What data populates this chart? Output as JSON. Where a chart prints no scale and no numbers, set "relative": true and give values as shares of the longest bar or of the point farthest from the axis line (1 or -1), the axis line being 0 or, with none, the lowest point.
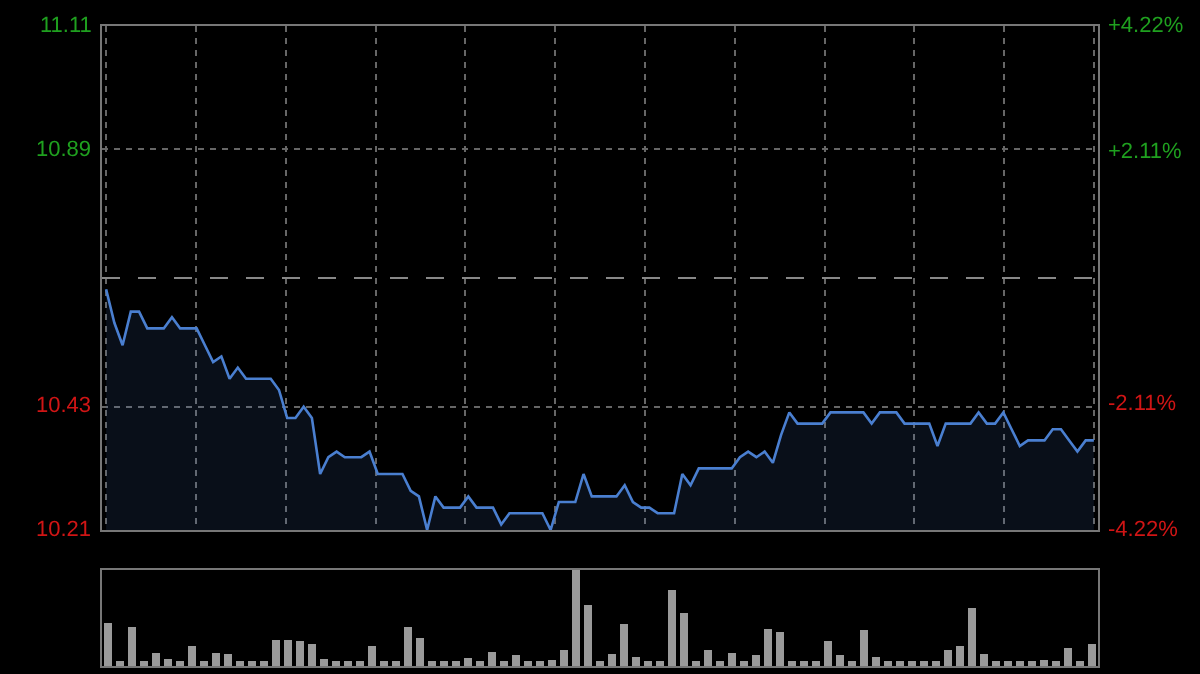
{
  "chart_data": [
    {
      "type": "area",
      "categories": [
        null,
        null,
        null,
        null,
        null,
        null,
        null,
        null,
        null,
        null,
        null,
        null,
        null,
        null,
        null,
        null,
        null,
        null,
        null,
        null,
        null,
        null,
        null,
        null,
        null,
        null,
        null,
        null,
        null,
        null,
        null,
        null,
        null,
        null,
        null,
        null,
        null,
        null,
        null,
        null,
        null,
        null,
        null,
        null,
        null,
        null,
        null,
        null,
        null,
        null,
        null,
        null,
        null,
        null,
        null,
        null,
        null,
        null,
        null,
        null,
        null,
        null,
        null,
        null,
        null,
        null,
        null,
        null,
        null,
        null,
        null,
        null,
        null,
        null,
        null,
        null,
        null,
        null,
        null,
        null,
        null,
        null,
        null,
        null,
        null,
        null,
        null,
        null,
        null,
        null,
        null,
        null,
        null,
        null,
        null,
        null,
        null,
        null,
        null,
        null,
        null,
        null,
        null,
        null,
        null,
        null,
        null,
        null,
        null,
        null,
        null,
        null,
        null,
        null,
        null,
        null,
        null,
        null,
        null,
        null,
        null
      ],
      "series": [
        {
          "color": "#4a7fd0",
          "values": [
            10.64,
            10.58,
            10.54,
            10.6,
            10.6,
            10.57,
            10.57,
            10.57,
            10.59,
            10.57,
            10.57,
            10.57,
            10.54,
            10.51,
            10.52,
            10.48,
            10.5,
            10.48,
            10.48,
            10.48,
            10.48,
            10.46,
            10.41,
            10.41,
            10.43,
            10.41,
            10.31,
            10.34,
            10.35,
            10.34,
            10.34,
            10.34,
            10.35,
            10.31,
            10.31,
            10.31,
            10.31,
            10.28,
            10.27,
            10.21,
            10.27,
            10.25,
            10.25,
            10.25,
            10.27,
            10.25,
            10.25,
            10.25,
            10.22,
            10.24,
            10.24,
            10.24,
            10.24,
            10.24,
            10.21,
            10.26,
            10.26,
            10.26,
            10.31,
            10.27,
            10.27,
            10.27,
            10.27,
            10.29,
            10.26,
            10.25,
            10.25,
            10.24,
            10.24,
            10.24,
            10.31,
            10.29,
            10.32,
            10.32,
            10.32,
            10.32,
            10.32,
            10.34,
            10.35,
            10.34,
            10.35,
            10.33,
            10.38,
            10.42,
            10.4,
            10.4,
            10.4,
            10.4,
            10.42,
            10.42,
            10.42,
            10.42,
            10.42,
            10.4,
            10.42,
            10.42,
            10.42,
            10.4,
            10.4,
            10.4,
            10.4,
            10.36,
            10.4,
            10.4,
            10.4,
            10.4,
            10.42,
            10.4,
            10.4,
            10.42,
            10.39,
            10.36,
            10.37,
            10.37,
            10.37,
            10.39,
            10.39,
            10.37,
            10.35,
            10.37,
            10.37
          ]
        }
      ],
      "ylim": [
        10.21,
        11.11
      ],
      "yticks": [
        11.11,
        10.89,
        10.43,
        10.21
      ],
      "y2lim": [
        -4.22,
        4.22
      ],
      "y2ticks": [
        {
          "value": 4.22,
          "label": "+4.22%"
        },
        {
          "value": 2.11,
          "label": "+2.11%"
        },
        {
          "value": -2.11,
          "label": "-2.11%"
        },
        {
          "value": -4.22,
          "label": "-4.22%"
        }
      ],
      "ref_lines": [
        {
          "axis": "y",
          "value": 10.66,
          "color": "#888888",
          "line_style": "dashed"
        }
      ],
      "grid": true
    },
    {
      "type": "bar",
      "relative": true,
      "categories": [
        null,
        null,
        null,
        null,
        null,
        null,
        null,
        null,
        null,
        null,
        null,
        null,
        null,
        null,
        null,
        null,
        null,
        null,
        null,
        null,
        null,
        null,
        null,
        null,
        null,
        null,
        null,
        null,
        null,
        null,
        null,
        null,
        null,
        null,
        null,
        null,
        null,
        null,
        null,
        null,
        null,
        null,
        null,
        null,
        null,
        null,
        null,
        null,
        null,
        null,
        null,
        null,
        null,
        null,
        null,
        null,
        null,
        null,
        null,
        null,
        null,
        null,
        null,
        null,
        null,
        null,
        null,
        null,
        null,
        null,
        null,
        null,
        null,
        null,
        null,
        null,
        null,
        null,
        null,
        null,
        null,
        null,
        null
      ],
      "series": [
        {
          "color": "#9a9a9a",
          "values": [
            0.45,
            0.05,
            0.41,
            0.05,
            0.14,
            0.07,
            0.05,
            0.21,
            0.05,
            0.14,
            0.12,
            0.05,
            0.05,
            0.05,
            0.27,
            0.27,
            0.26,
            0.23,
            0.07,
            0.05,
            0.05,
            0.05,
            0.21,
            0.05,
            0.05,
            0.41,
            0.29,
            0.05,
            0.05,
            0.05,
            0.08,
            0.05,
            0.15,
            0.05,
            0.11,
            0.05,
            0.05,
            0.06,
            0.17,
            1,
            0.64,
            0.05,
            0.12,
            0.44,
            0.09,
            0.05,
            0.05,
            0.79,
            0.55,
            0.05,
            0.17,
            0.05,
            0.14,
            0.05,
            0.11,
            0.39,
            0.35,
            0.05,
            0.05,
            0.05,
            0.26,
            0.11,
            0.05,
            0.37,
            0.09,
            0.05,
            0.05,
            0.05,
            0.05,
            0.05,
            0.17,
            0.21,
            0.6,
            0.12,
            0.05,
            0.05,
            0.05,
            0.05,
            0.06,
            0.05,
            0.19,
            0.05,
            0.23
          ]
        }
      ],
      "grid": false
    }
  ]
}
